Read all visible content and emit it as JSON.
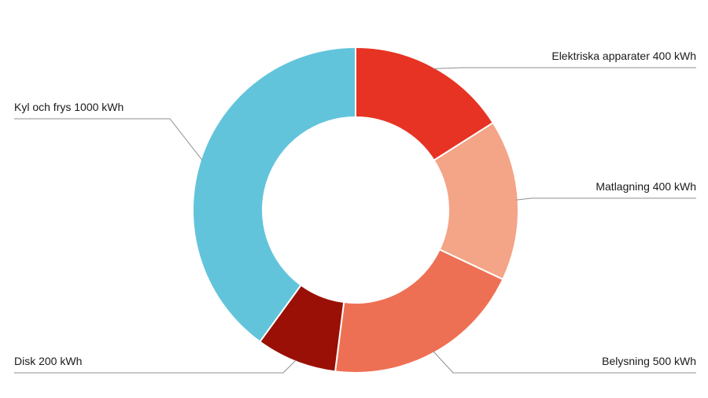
{
  "chart_data": {
    "type": "pie",
    "variant": "donut",
    "start_angle_deg": 0,
    "direction": "clockwise",
    "slices": [
      {
        "label": "Elektriska apparater 400 kWh",
        "name": "Elektriska apparater",
        "value": 400,
        "color": "#e63323",
        "label_side": "right"
      },
      {
        "label": "Matlagning 400 kWh",
        "name": "Matlagning",
        "value": 400,
        "color": "#f4a487",
        "label_side": "right"
      },
      {
        "label": "Belysning 500 kWh",
        "name": "Belysning",
        "value": 500,
        "color": "#ee7054",
        "label_side": "right"
      },
      {
        "label": "Disk 200 kWh",
        "name": "Disk",
        "value": 200,
        "color": "#9a1006",
        "label_side": "left"
      },
      {
        "label": "Kyl och frys 1000 kWh",
        "name": "Kyl och frys",
        "value": 1000,
        "color": "#62c4db",
        "label_side": "left"
      }
    ],
    "unit": "kWh",
    "legend": "none",
    "labels": "outside-with-leader-lines"
  }
}
